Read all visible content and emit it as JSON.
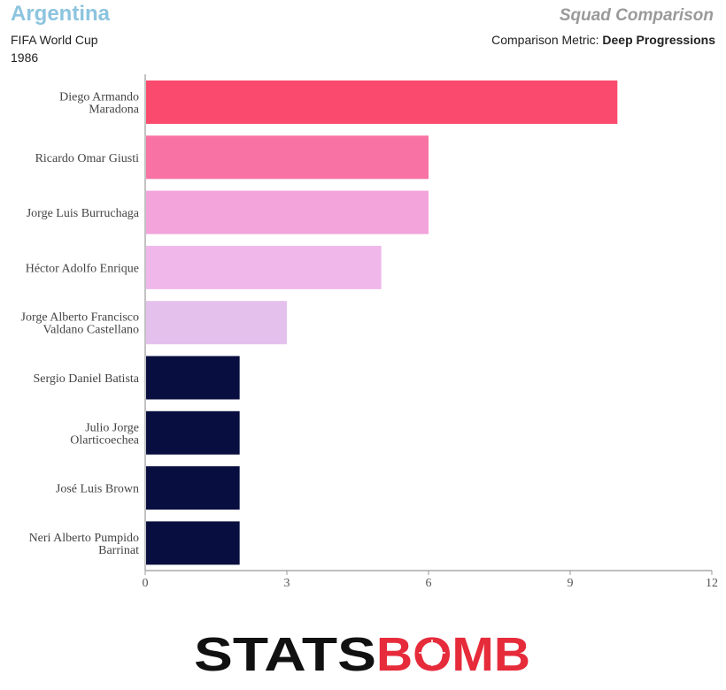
{
  "header": {
    "team": "Argentina",
    "competition": "FIFA World Cup",
    "season": "1986",
    "title": "Squad Comparison",
    "metric_label": "Comparison Metric:",
    "metric_value": "Deep Progressions"
  },
  "chart_data": {
    "type": "bar",
    "orientation": "horizontal",
    "categories": [
      [
        "Diego Armando",
        "Maradona"
      ],
      [
        "Ricardo Omar Giusti"
      ],
      [
        "Jorge Luis Burruchaga"
      ],
      [
        "Héctor Adolfo Enrique"
      ],
      [
        "Jorge Alberto Francisco",
        "Valdano Castellano"
      ],
      [
        "Sergio Daniel Batista"
      ],
      [
        "Julio Jorge",
        "Olarticoechea"
      ],
      [
        "José Luis Brown"
      ],
      [
        "Neri Alberto Pumpido",
        "Barrinat"
      ]
    ],
    "values": [
      10,
      6,
      6,
      5,
      3,
      2,
      2,
      2,
      2
    ],
    "colors": [
      "#fa4a6e",
      "#f872a3",
      "#f2a4db",
      "#f0b8ea",
      "#e4c0ec",
      "#080e3f",
      "#080e3f",
      "#080e3f",
      "#080e3f"
    ],
    "xlim": [
      0,
      12
    ],
    "xticks": [
      0,
      3,
      6,
      9,
      12
    ],
    "xlabel": "",
    "ylabel": ""
  },
  "brand": {
    "left_text": "STATS",
    "right_text": "BOMB",
    "dark_color": "#111111",
    "accent_color": "#e62b3b"
  }
}
